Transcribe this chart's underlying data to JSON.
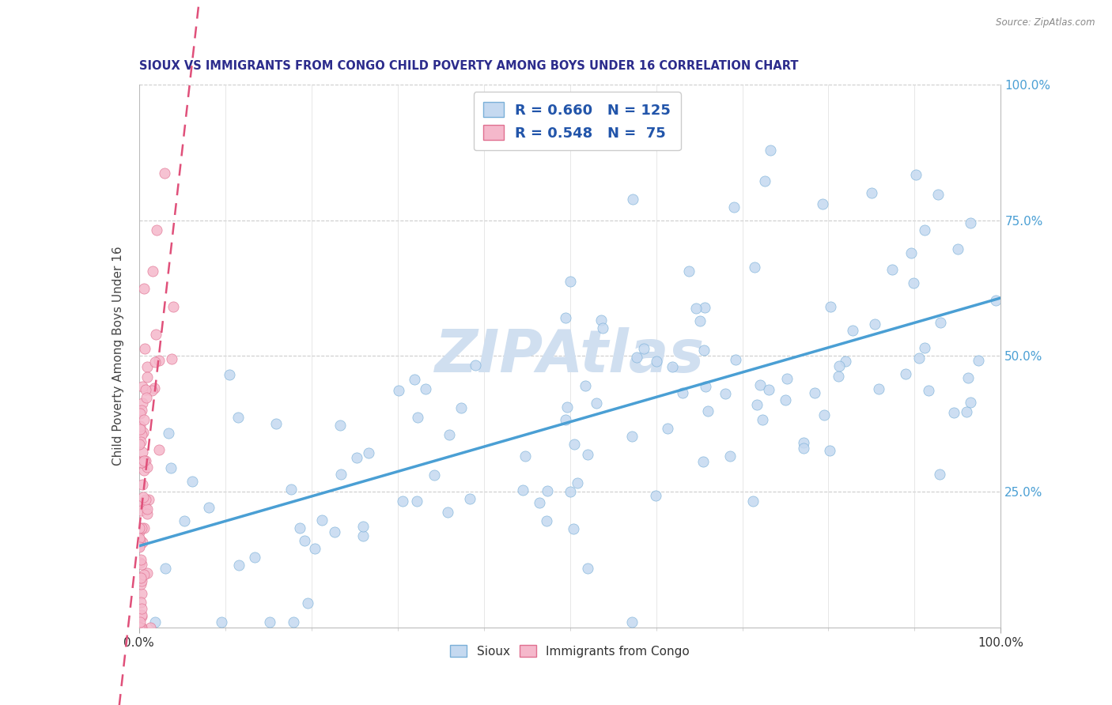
{
  "title": "SIOUX VS IMMIGRANTS FROM CONGO CHILD POVERTY AMONG BOYS UNDER 16 CORRELATION CHART",
  "source": "Source: ZipAtlas.com",
  "ylabel": "Child Poverty Among Boys Under 16",
  "title_color": "#2c2c8c",
  "source_color": "#888888",
  "scatter_blue": "#c5d9f0",
  "scatter_blue_edge": "#7ab0d8",
  "scatter_pink": "#f5b8cb",
  "scatter_pink_edge": "#e07090",
  "line_blue": "#4a9fd4",
  "line_pink": "#e0507a",
  "watermark_color": "#d0dff0",
  "legend_text_color": "#2255aa",
  "sioux_N": 125,
  "congo_N": 75,
  "sioux_R": 0.66,
  "congo_R": 0.548,
  "seed": 12345
}
